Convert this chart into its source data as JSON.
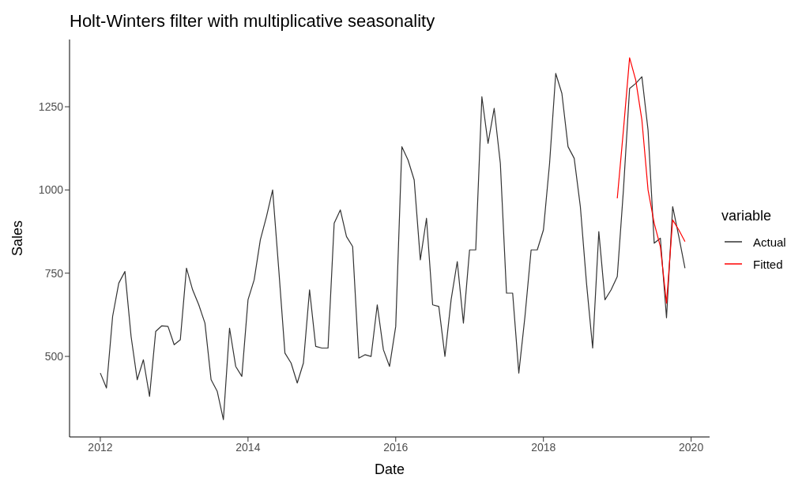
{
  "chart_data": {
    "type": "line",
    "title": "Holt-Winters filter with multiplicative seasonality",
    "xlabel": "Date",
    "ylabel": "Sales",
    "legend_title": "variable",
    "legend": "right",
    "grid": false,
    "marker": "none",
    "line_style": "solid",
    "xlim": [
      "2011-08",
      "2020-04"
    ],
    "xticks": [
      "2012",
      "2014",
      "2016",
      "2018",
      "2020"
    ],
    "ylim": [
      258,
      1452
    ],
    "yticks": [
      500,
      750,
      1000,
      1250
    ],
    "series": [
      {
        "name": "Actual",
        "color": "#333333",
        "x": [
          "2012-01",
          "2012-02",
          "2012-03",
          "2012-04",
          "2012-05",
          "2012-06",
          "2012-07",
          "2012-08",
          "2012-09",
          "2012-10",
          "2012-11",
          "2012-12",
          "2013-01",
          "2013-02",
          "2013-03",
          "2013-04",
          "2013-05",
          "2013-06",
          "2013-07",
          "2013-08",
          "2013-09",
          "2013-10",
          "2013-11",
          "2013-12",
          "2014-01",
          "2014-02",
          "2014-03",
          "2014-04",
          "2014-05",
          "2014-06",
          "2014-07",
          "2014-08",
          "2014-09",
          "2014-10",
          "2014-11",
          "2014-12",
          "2015-01",
          "2015-02",
          "2015-03",
          "2015-04",
          "2015-05",
          "2015-06",
          "2015-07",
          "2015-08",
          "2015-09",
          "2015-10",
          "2015-11",
          "2015-12",
          "2016-01",
          "2016-02",
          "2016-03",
          "2016-04",
          "2016-05",
          "2016-06",
          "2016-07",
          "2016-08",
          "2016-09",
          "2016-10",
          "2016-11",
          "2016-12",
          "2017-01",
          "2017-02",
          "2017-03",
          "2017-04",
          "2017-05",
          "2017-06",
          "2017-07",
          "2017-08",
          "2017-09",
          "2017-10",
          "2017-11",
          "2017-12",
          "2018-01",
          "2018-02",
          "2018-03",
          "2018-04",
          "2018-05",
          "2018-06",
          "2018-07",
          "2018-08",
          "2018-09",
          "2018-10",
          "2018-11",
          "2018-12",
          "2019-01",
          "2019-02",
          "2019-03",
          "2019-04",
          "2019-05",
          "2019-06",
          "2019-07",
          "2019-08",
          "2019-09",
          "2019-10",
          "2019-11",
          "2019-12"
        ],
        "values": [
          450,
          405,
          620,
          720,
          755,
          560,
          430,
          490,
          380,
          575,
          592,
          590,
          535,
          550,
          765,
          700,
          655,
          600,
          430,
          395,
          310,
          585,
          470,
          440,
          670,
          730,
          850,
          920,
          1000,
          760,
          510,
          480,
          420,
          480,
          700,
          530,
          525,
          525,
          900,
          940,
          860,
          830,
          495,
          505,
          500,
          655,
          520,
          470,
          590,
          1130,
          1090,
          1030,
          790,
          915,
          655,
          650,
          500,
          670,
          785,
          600,
          820,
          820,
          1280,
          1140,
          1245,
          1080,
          690,
          690,
          450,
          620,
          820,
          820,
          880,
          1080,
          1350,
          1290,
          1130,
          1095,
          950,
          720,
          525,
          875,
          670,
          700,
          740,
          1000,
          1305,
          1320,
          1340,
          1180,
          840,
          855,
          616,
          950,
          860,
          765
        ]
      },
      {
        "name": "Fitted",
        "color": "#ff0000",
        "x": [
          "2019-01",
          "2019-02",
          "2019-03",
          "2019-04",
          "2019-05",
          "2019-06",
          "2019-07",
          "2019-08",
          "2019-09",
          "2019-10",
          "2019-11",
          "2019-12"
        ],
        "values": [
          975,
          1180,
          1397,
          1330,
          1210,
          1000,
          900,
          830,
          660,
          910,
          880,
          845
        ]
      }
    ]
  }
}
